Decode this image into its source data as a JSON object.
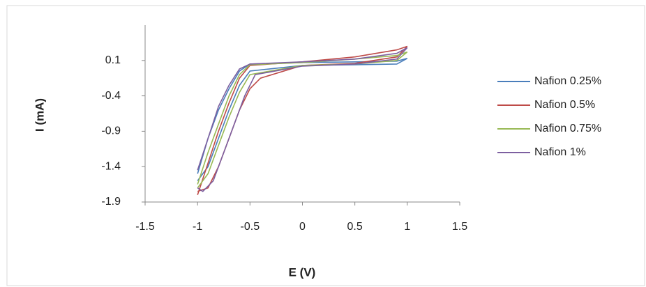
{
  "chart_data": {
    "type": "line",
    "x_label": "E (V)",
    "y_label": "I (mA)",
    "xlim": [
      -1.5,
      1.5
    ],
    "xticks": [
      -1.5,
      -1,
      -0.5,
      0,
      0.5,
      1,
      1.5
    ],
    "ylim": [
      -1.9,
      0.6
    ],
    "yticks": [
      -1.9,
      -1.4,
      -0.9,
      -0.4,
      0.1
    ],
    "grid": false,
    "legend": "right",
    "series": [
      {
        "name": "Nafion 0.25%",
        "color": "#4a7ebb",
        "x": [
          -1,
          -0.9,
          -0.8,
          -0.7,
          -0.6,
          -0.5,
          0,
          0.5,
          0.9,
          1,
          0.9,
          0.5,
          0,
          -0.5,
          -0.6,
          -0.7,
          -0.8,
          -0.9,
          -1
        ],
        "values": [
          -1.5,
          -1.0,
          -0.6,
          -0.3,
          -0.05,
          0.05,
          0.07,
          0.08,
          0.09,
          0.13,
          0.05,
          0.04,
          0.03,
          -0.05,
          -0.25,
          -0.6,
          -1.0,
          -1.4,
          -1.6
        ]
      },
      {
        "name": "Nafion 0.5%",
        "color": "#be4b48",
        "x": [
          -1,
          -0.9,
          -0.8,
          -0.7,
          -0.6,
          -0.5,
          0,
          0.5,
          0.9,
          1,
          0.9,
          0.5,
          0,
          -0.4,
          -0.5,
          -0.6,
          -0.7,
          -0.8,
          -0.9,
          -1
        ],
        "values": [
          -1.8,
          -1.35,
          -0.9,
          -0.5,
          -0.15,
          0.03,
          0.08,
          0.15,
          0.25,
          0.3,
          0.15,
          0.06,
          0.03,
          -0.15,
          -0.3,
          -0.6,
          -1.0,
          -1.4,
          -1.7,
          -1.75
        ]
      },
      {
        "name": "Nafion 0.75%",
        "color": "#98b954",
        "x": [
          -1,
          -0.9,
          -0.8,
          -0.7,
          -0.6,
          -0.5,
          0,
          0.5,
          0.9,
          1,
          0.9,
          0.5,
          0,
          -0.5,
          -0.6,
          -0.7,
          -0.8,
          -0.9,
          -1
        ],
        "values": [
          -1.65,
          -1.2,
          -0.8,
          -0.4,
          -0.1,
          0.04,
          0.07,
          0.12,
          0.17,
          0.22,
          0.1,
          0.05,
          0.03,
          -0.1,
          -0.35,
          -0.7,
          -1.1,
          -1.5,
          -1.7
        ]
      },
      {
        "name": "Nafion 1%",
        "color": "#7d60a0",
        "x": [
          -1,
          -0.9,
          -0.8,
          -0.7,
          -0.6,
          -0.5,
          0,
          0.5,
          0.9,
          1,
          0.9,
          0.5,
          0,
          -0.45,
          -0.55,
          -0.65,
          -0.75,
          -0.85,
          -0.95,
          -1
        ],
        "values": [
          -1.45,
          -1.0,
          -0.55,
          -0.25,
          -0.02,
          0.05,
          0.08,
          0.12,
          0.2,
          0.28,
          0.12,
          0.05,
          0.02,
          -0.1,
          -0.4,
          -0.8,
          -1.2,
          -1.6,
          -1.75,
          -1.7
        ]
      }
    ]
  }
}
